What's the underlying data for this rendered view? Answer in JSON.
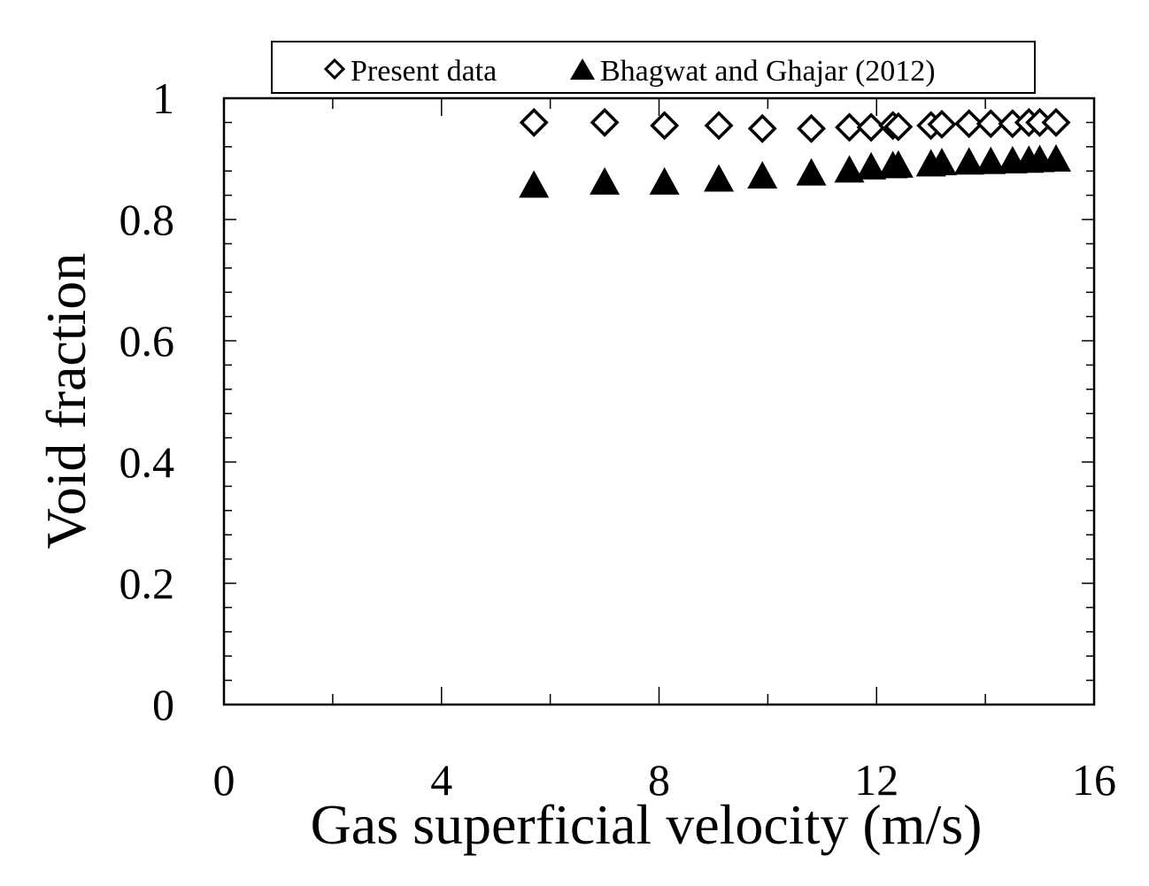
{
  "chart_data": {
    "type": "scatter",
    "title": "",
    "xlabel": "Gas superficial velocity (m/s)",
    "ylabel": "Void fraction",
    "xlim": [
      0,
      16
    ],
    "ylim": [
      0,
      1
    ],
    "x_ticks": [
      0,
      4,
      8,
      12,
      16
    ],
    "x_tick_labels": [
      "0",
      "4",
      "8",
      "12",
      "16"
    ],
    "y_ticks": [
      0,
      0.2,
      0.4,
      0.6,
      0.8,
      1
    ],
    "y_tick_labels": [
      "0",
      "0.2",
      "0.4",
      "0.6",
      "0.8",
      "1"
    ],
    "x_minor_step": 2,
    "y_minor_step": 0.04,
    "grid": false,
    "legend_position": "top",
    "series": [
      {
        "name": "Present data",
        "marker": "open-diamond",
        "color": "#000000",
        "x": [
          5.7,
          7.0,
          8.1,
          9.1,
          9.9,
          10.8,
          11.5,
          11.9,
          12.3,
          12.4,
          13.0,
          13.2,
          13.7,
          14.1,
          14.5,
          14.8,
          15.0,
          15.3
        ],
        "y": [
          0.96,
          0.96,
          0.955,
          0.955,
          0.95,
          0.95,
          0.952,
          0.952,
          0.955,
          0.953,
          0.955,
          0.957,
          0.958,
          0.958,
          0.958,
          0.96,
          0.96,
          0.96
        ]
      },
      {
        "name": "Bhagwat and Ghajar (2012)",
        "marker": "filled-triangle",
        "color": "#000000",
        "x": [
          5.7,
          7.0,
          8.1,
          9.1,
          9.9,
          10.8,
          11.5,
          11.9,
          12.3,
          12.4,
          13.0,
          13.2,
          13.7,
          14.1,
          14.5,
          14.8,
          15.0,
          15.3
        ],
        "y": [
          0.855,
          0.86,
          0.86,
          0.865,
          0.87,
          0.875,
          0.88,
          0.885,
          0.887,
          0.888,
          0.89,
          0.892,
          0.893,
          0.894,
          0.895,
          0.896,
          0.897,
          0.898
        ]
      }
    ]
  }
}
